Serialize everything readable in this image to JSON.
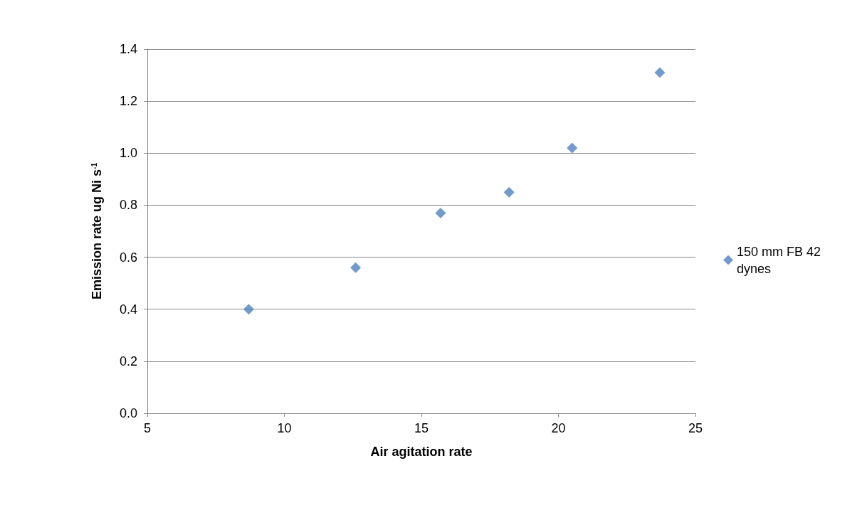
{
  "chart_data": {
    "type": "scatter",
    "xlabel": "Air agitation rate",
    "ylabel": "Emission rate ug Ni s$^{-1}$",
    "x": [
      8.7,
      12.6,
      15.7,
      18.2,
      20.5,
      23.7
    ],
    "series": [
      {
        "name": "150 mm FB 42 dynes",
        "color": "#4f81bd",
        "values": [
          0.4,
          0.56,
          0.77,
          0.85,
          1.02,
          1.31
        ]
      }
    ],
    "xlim": [
      5,
      25
    ],
    "xticks": [
      5,
      10,
      15,
      20,
      25
    ],
    "ylim": [
      0,
      1.4
    ],
    "yticks": [
      {
        "value": 0,
        "label": "0.0"
      },
      {
        "value": 0.2,
        "label": "0.2"
      },
      {
        "value": 0.4,
        "label": "0.4"
      },
      {
        "value": 0.6,
        "label": "0.6"
      },
      {
        "value": 0.8,
        "label": "0.8"
      },
      {
        "value": 1.0,
        "label": "1.0"
      },
      {
        "value": 1.2,
        "label": "1.2"
      },
      {
        "value": 1.4,
        "label": "1.4"
      }
    ],
    "grid": "y",
    "legend": "right",
    "marker": "diamond"
  }
}
